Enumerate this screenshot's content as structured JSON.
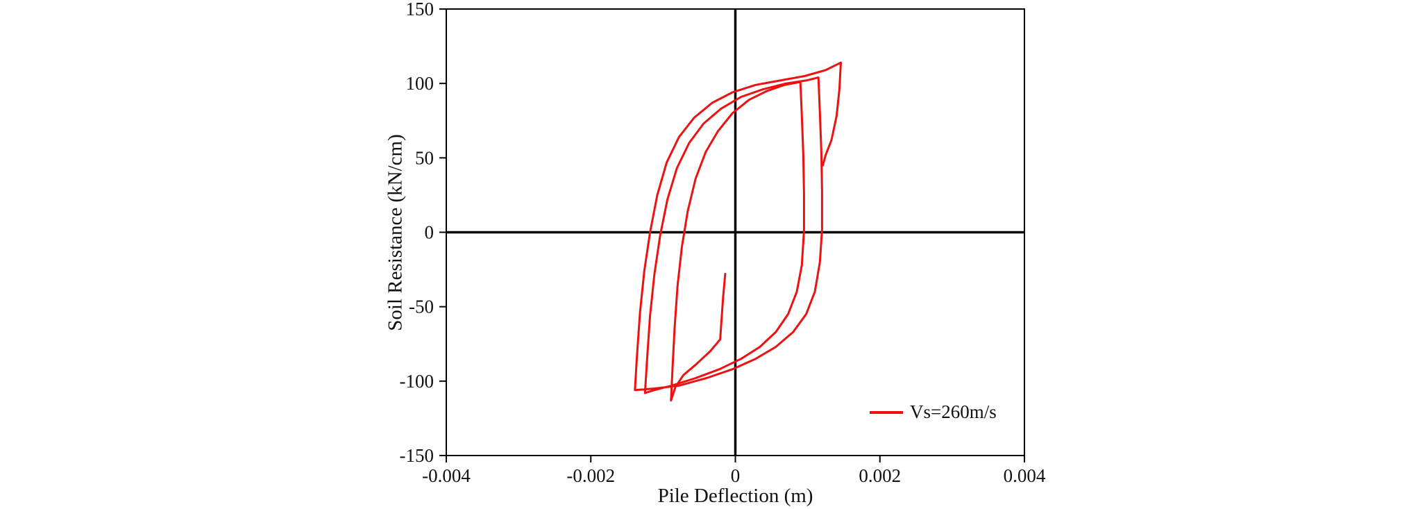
{
  "chart_data": {
    "type": "line",
    "title": "",
    "xlabel": "Pile Deflection (m)",
    "ylabel": "Soil Resistance  (kN/cm)",
    "xlim": [
      -0.004,
      0.004
    ],
    "ylim": [
      -150,
      150
    ],
    "grid": false,
    "legend_position": "lower-right-inside",
    "frame_color": "#000000",
    "zero_axis_color": "#000000",
    "x_ticks": [
      {
        "value": -0.004,
        "label": "-0.004"
      },
      {
        "value": -0.002,
        "label": "-0.002"
      },
      {
        "value": 0,
        "label": "0"
      },
      {
        "value": 0.002,
        "label": "0.002"
      },
      {
        "value": 0.004,
        "label": "0.004"
      }
    ],
    "y_ticks": [
      {
        "value": -150,
        "label": "-150"
      },
      {
        "value": -100,
        "label": "-100"
      },
      {
        "value": -50,
        "label": "-50"
      },
      {
        "value": 0,
        "label": "0"
      },
      {
        "value": 50,
        "label": "50"
      },
      {
        "value": 100,
        "label": "100"
      },
      {
        "value": 150,
        "label": "150"
      }
    ],
    "series": [
      {
        "name": "Vs=260m/s",
        "color": "#ee1111",
        "points": [
          [
            -0.00014,
            -28
          ],
          [
            -0.00017,
            -44
          ],
          [
            -0.00019,
            -58
          ],
          [
            -0.00021,
            -72
          ],
          [
            -0.00035,
            -80
          ],
          [
            -0.00055,
            -89
          ],
          [
            -0.00072,
            -96
          ],
          [
            -0.00083,
            -104
          ],
          [
            -0.00089,
            -113
          ],
          [
            -0.00087,
            -92
          ],
          [
            -0.00084,
            -64
          ],
          [
            -0.0008,
            -36
          ],
          [
            -0.00074,
            -10
          ],
          [
            -0.00066,
            14
          ],
          [
            -0.00055,
            36
          ],
          [
            -0.00041,
            54
          ],
          [
            -0.00024,
            68
          ],
          [
            -4e-05,
            80
          ],
          [
            0.00019,
            89
          ],
          [
            0.00044,
            95
          ],
          [
            0.00068,
            99
          ],
          [
            0.0009,
            101
          ],
          [
            0.00092,
            78
          ],
          [
            0.00094,
            52
          ],
          [
            0.00095,
            26
          ],
          [
            0.00095,
            1
          ],
          [
            0.00092,
            -22
          ],
          [
            0.00085,
            -40
          ],
          [
            0.00073,
            -55
          ],
          [
            0.00056,
            -67
          ],
          [
            0.00034,
            -77
          ],
          [
            8e-05,
            -85
          ],
          [
            -0.00022,
            -92
          ],
          [
            -0.00055,
            -98
          ],
          [
            -0.00088,
            -103
          ],
          [
            -0.00112,
            -106
          ],
          [
            -0.00125,
            -108
          ],
          [
            -0.00122,
            -84
          ],
          [
            -0.00118,
            -56
          ],
          [
            -0.00112,
            -28
          ],
          [
            -0.00104,
            -2
          ],
          [
            -0.00094,
            22
          ],
          [
            -0.00081,
            43
          ],
          [
            -0.00064,
            60
          ],
          [
            -0.00044,
            73
          ],
          [
            -0.0002,
            83
          ],
          [
            8e-05,
            91
          ],
          [
            0.00038,
            96
          ],
          [
            0.0007,
            100
          ],
          [
            0.00098,
            102
          ],
          [
            0.00115,
            104
          ],
          [
            0.00117,
            80
          ],
          [
            0.00119,
            54
          ],
          [
            0.0012,
            28
          ],
          [
            0.0012,
            2
          ],
          [
            0.00117,
            -20
          ],
          [
            0.0011,
            -40
          ],
          [
            0.00098,
            -55
          ],
          [
            0.0008,
            -67
          ],
          [
            0.00056,
            -77
          ],
          [
            0.00028,
            -85
          ],
          [
            -4e-05,
            -92
          ],
          [
            -0.0004,
            -98
          ],
          [
            -0.00078,
            -103
          ],
          [
            -0.00112,
            -105
          ],
          [
            -0.00139,
            -106
          ],
          [
            -0.00136,
            -82
          ],
          [
            -0.00132,
            -54
          ],
          [
            -0.00126,
            -26
          ],
          [
            -0.00118,
            0
          ],
          [
            -0.00108,
            25
          ],
          [
            -0.00095,
            47
          ],
          [
            -0.00078,
            64
          ],
          [
            -0.00057,
            77
          ],
          [
            -0.00032,
            87
          ],
          [
            -4e-05,
            94
          ],
          [
            0.00028,
            99
          ],
          [
            0.00062,
            102
          ],
          [
            0.00096,
            105
          ],
          [
            0.00125,
            109
          ],
          [
            0.00146,
            114
          ],
          [
            0.00144,
            96
          ],
          [
            0.0014,
            78
          ],
          [
            0.00133,
            62
          ],
          [
            0.00125,
            52
          ],
          [
            0.00121,
            45
          ]
        ]
      }
    ]
  }
}
